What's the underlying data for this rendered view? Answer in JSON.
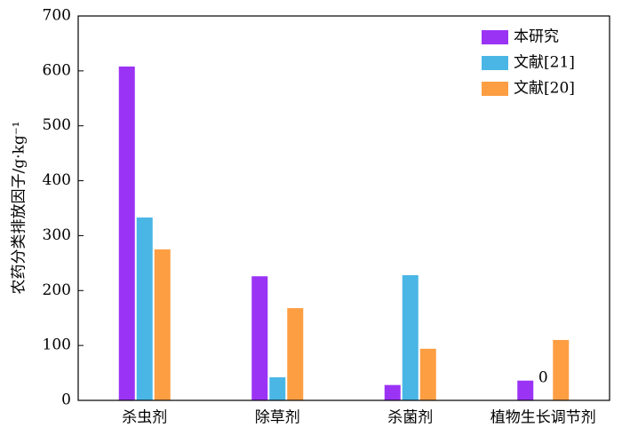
{
  "chart_data": {
    "type": "bar",
    "ylabel": "农药分类排放因子/g·kg⁻¹",
    "categories": [
      "杀虫剂",
      "除草剂",
      "杀菌剂",
      "植物生长调节剂"
    ],
    "series": [
      {
        "name": "本研究",
        "color": "#9b33f5",
        "values": [
          608,
          226,
          28,
          36
        ]
      },
      {
        "name": "文献[21]",
        "color": "#4ab6e6",
        "values": [
          333,
          42,
          228,
          0
        ]
      },
      {
        "name": "文献[20]",
        "color": "#fd9e43",
        "values": [
          275,
          168,
          94,
          110
        ]
      }
    ],
    "ylim": [
      0,
      700
    ],
    "yticks": [
      0,
      100,
      200,
      300,
      400,
      500,
      600,
      700
    ],
    "legend": "upper right"
  }
}
